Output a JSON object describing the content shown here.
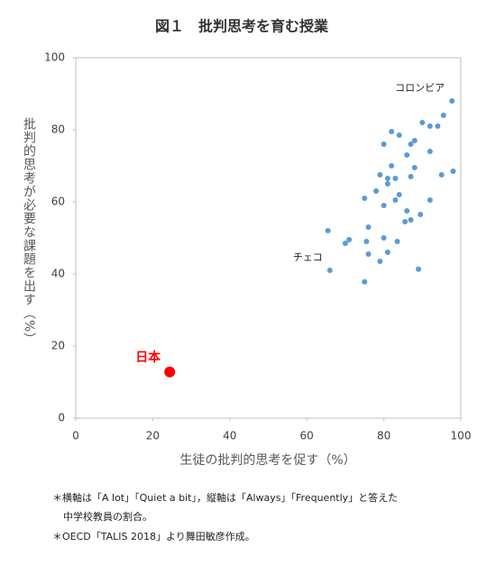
{
  "chart_data": {
    "type": "scatter",
    "title": "図１　批判思考を育む授業",
    "xlabel": "生徒の批判的思考を促す（%）",
    "ylabel": "批判的思考が必要な課題を出す（%）",
    "xlim": [
      0,
      100
    ],
    "xticks": [
      0,
      20,
      40,
      60,
      80,
      100
    ],
    "ylim": [
      0,
      100
    ],
    "yticks": [
      0,
      20,
      40,
      60,
      80,
      100
    ],
    "series": [
      {
        "color": "#5b9bd5",
        "x": [
          97.7,
          95.5,
          90,
          92,
          94,
          82,
          84,
          88,
          87,
          80,
          86,
          92,
          82,
          88,
          79,
          95,
          98,
          81,
          83,
          87,
          81,
          84,
          78,
          75,
          83,
          92,
          80,
          86,
          89.5,
          87,
          85.5,
          76,
          65.5,
          71,
          70,
          75.5,
          80,
          83.5,
          81,
          76,
          79,
          89,
          66,
          75
        ],
        "y": [
          88,
          84,
          82,
          81,
          81,
          79.5,
          78.5,
          77,
          76,
          76,
          73,
          74,
          70,
          69.5,
          67.5,
          67.5,
          68.5,
          66.5,
          66.5,
          67,
          65,
          62,
          63,
          61,
          60.5,
          60.5,
          59,
          57.5,
          56.5,
          55,
          54.5,
          53,
          52,
          49.5,
          48.5,
          49,
          50,
          49,
          46,
          45.5,
          43.5,
          41.3,
          41,
          37.8
        ],
        "labels": [
          "コロンビア",
          null,
          null,
          null,
          null,
          null,
          null,
          null,
          null,
          null,
          null,
          null,
          null,
          null,
          null,
          null,
          null,
          null,
          null,
          null,
          null,
          null,
          null,
          null,
          null,
          null,
          null,
          null,
          null,
          null,
          null,
          null,
          null,
          null,
          null,
          null,
          null,
          null,
          null,
          null,
          null,
          null,
          "チェコ",
          null
        ]
      },
      {
        "color": "#ff0000",
        "x": [
          24.4
        ],
        "y": [
          12.8
        ],
        "labels": [
          "日本"
        ]
      }
    ],
    "notes": [
      "＊横軸は「A lot」「Quiet a bit」，縦軸は「Always」「Frequently」と答えた",
      "中学校教員の割合。",
      "＊OECD「TALIS 2018」より舞田敏彦作成。"
    ]
  }
}
